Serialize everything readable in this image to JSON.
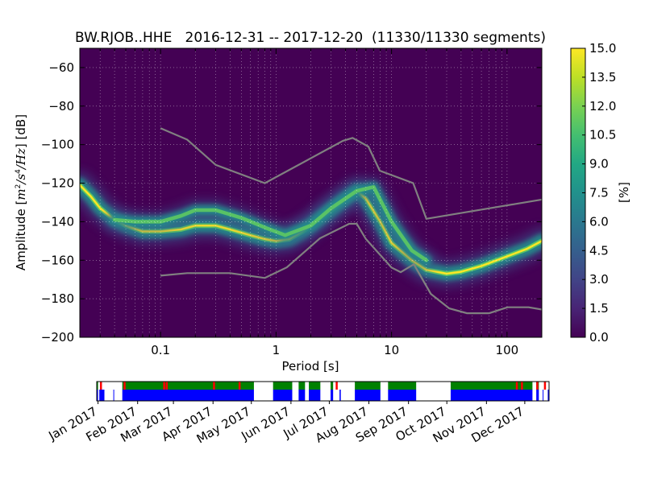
{
  "chart_data": [
    {
      "type": "heatmap",
      "title": "BW.RJOB..HHE   2016-12-31 -- 2017-12-20  (11330/11330 segments)",
      "xlabel": "Period [s]",
      "ylabel": "Amplitude [m²/s⁴/Hz] [dB]",
      "ylabel_parts": {
        "prefix": "Amplitude [",
        "m": "m",
        "exp2": "2",
        "s": "/s",
        "exp4": "4",
        "hz": "/Hz",
        "suffix": "] [dB]"
      },
      "x_scale": "log",
      "xlim": [
        0.02,
        200
      ],
      "ylim": [
        -200,
        -50
      ],
      "x_ticks": [
        0.1,
        1,
        10,
        100
      ],
      "x_tick_labels": [
        "0.1",
        "1",
        "10",
        "100"
      ],
      "y_ticks": [
        -200,
        -180,
        -160,
        -140,
        -120,
        -100,
        -80,
        -60
      ],
      "y_tick_labels": [
        "−200",
        "−180",
        "−160",
        "−140",
        "−120",
        "−100",
        "−80",
        "−60"
      ],
      "grid": true,
      "colorbar": {
        "label": "[%]",
        "range": [
          0,
          15
        ],
        "ticks": [
          "0.0",
          "1.5",
          "3.0",
          "4.5",
          "6.0",
          "7.5",
          "9.0",
          "10.5",
          "12.0",
          "13.5",
          "15.0"
        ],
        "colormap": "viridis"
      },
      "ppsd_modes": [
        {
          "name": "",
          "x": [
            0.02,
            0.025,
            0.03,
            0.04,
            0.05,
            0.07,
            0.1,
            0.15,
            0.2,
            0.3,
            0.4,
            0.6,
            0.8,
            1,
            1.3,
            1.7,
            2.2,
            3,
            4,
            5,
            6,
            8,
            10,
            15,
            20,
            30,
            40,
            60,
            100,
            150,
            200
          ],
          "y": [
            -121,
            -127,
            -133,
            -139,
            -142,
            -145,
            -145,
            -144,
            -142,
            -142,
            -144,
            -147,
            -149,
            -150,
            -149,
            -145,
            -140,
            -134,
            -128,
            -124,
            -128,
            -140,
            -151,
            -160,
            -165,
            -167,
            -166,
            -163,
            -158,
            -154,
            -150
          ]
        },
        {
          "name": "",
          "x": [
            0.04,
            0.06,
            0.1,
            0.15,
            0.2,
            0.3,
            0.5,
            0.8,
            1.2,
            2,
            3,
            5,
            7,
            10,
            15,
            20
          ],
          "y": [
            -139,
            -140,
            -140,
            -137,
            -134,
            -134,
            -138,
            -143,
            -147,
            -142,
            -133,
            -124,
            -122,
            -140,
            -155,
            -160
          ]
        }
      ],
      "nhnm": {
        "name": "",
        "x": [
          0.1,
          0.17,
          0.3,
          0.8,
          3.8,
          4.6,
          6.3,
          7.9,
          15.4,
          20,
          200
        ],
        "y": [
          -91.5,
          -97.4,
          -110.5,
          -120,
          -98,
          -96.5,
          -101,
          -113.5,
          -120,
          -138.5,
          -128.5
        ]
      },
      "nlnm": {
        "name": "",
        "x": [
          0.1,
          0.17,
          0.4,
          0.8,
          1.24,
          2.4,
          4.3,
          5,
          6,
          10,
          12,
          15.6,
          21.9,
          31.6,
          45,
          70,
          101,
          154,
          200
        ],
        "y": [
          -168,
          -166.7,
          -166.7,
          -169.2,
          -163.7,
          -148.6,
          -141.1,
          -141.1,
          -149,
          -163.8,
          -166.2,
          -162.1,
          -177.5,
          -185,
          -187.5,
          -187.5,
          -184.4,
          -184.4,
          -185.6
        ]
      }
    },
    {
      "type": "timeline",
      "x_tick_labels": [
        "Jan 2017",
        "Feb 2017",
        "Mar 2017",
        "Apr 2017",
        "May 2017",
        "Jun 2017",
        "Jul 2017",
        "Aug 2017",
        "Sep 2017",
        "Oct 2017",
        "Nov 2017",
        "Dec 2017"
      ],
      "range_days": [
        -1,
        353
      ],
      "colors": {
        "data": "#0000ff",
        "used": "#008000",
        "gap": "#ff0000"
      },
      "blue_segments": [
        [
          -1,
          0
        ],
        [
          1,
          5
        ],
        [
          12,
          12.5
        ],
        [
          19,
          122
        ],
        [
          137,
          152
        ],
        [
          157,
          162
        ],
        [
          165,
          174
        ],
        [
          182,
          184
        ],
        [
          189,
          190
        ],
        [
          201,
          221
        ],
        [
          227,
          249
        ],
        [
          276,
          340
        ],
        [
          343,
          345
        ],
        [
          348,
          348.5
        ],
        [
          352,
          353
        ]
      ],
      "green_segments": [
        [
          -1,
          0
        ],
        [
          19,
          122
        ],
        [
          137,
          152
        ],
        [
          157,
          162
        ],
        [
          165,
          174
        ],
        [
          182,
          184
        ],
        [
          201,
          221
        ],
        [
          227,
          249
        ],
        [
          276,
          340
        ],
        [
          343,
          345
        ]
      ],
      "red_marks": [
        1.5,
        20,
        51,
        53,
        90,
        110,
        186,
        327,
        331,
        343,
        349
      ]
    }
  ]
}
